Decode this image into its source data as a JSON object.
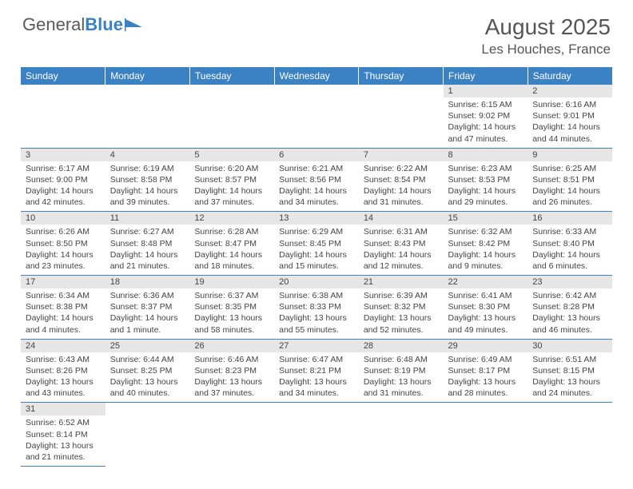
{
  "logo": {
    "text1": "General",
    "text2": "Blue"
  },
  "title": "August 2025",
  "location": "Les Houches, France",
  "colors": {
    "header_bg": "#3b82c4",
    "header_text": "#ffffff",
    "daynum_bg": "#e6e6e6",
    "rule": "#3b82c4",
    "body_text": "#444444"
  },
  "weekdays": [
    "Sunday",
    "Monday",
    "Tuesday",
    "Wednesday",
    "Thursday",
    "Friday",
    "Saturday"
  ],
  "weeks": [
    [
      null,
      null,
      null,
      null,
      null,
      {
        "n": "1",
        "sr": "Sunrise: 6:15 AM",
        "ss": "Sunset: 9:02 PM",
        "dl": "Daylight: 14 hours and 47 minutes."
      },
      {
        "n": "2",
        "sr": "Sunrise: 6:16 AM",
        "ss": "Sunset: 9:01 PM",
        "dl": "Daylight: 14 hours and 44 minutes."
      }
    ],
    [
      {
        "n": "3",
        "sr": "Sunrise: 6:17 AM",
        "ss": "Sunset: 9:00 PM",
        "dl": "Daylight: 14 hours and 42 minutes."
      },
      {
        "n": "4",
        "sr": "Sunrise: 6:19 AM",
        "ss": "Sunset: 8:58 PM",
        "dl": "Daylight: 14 hours and 39 minutes."
      },
      {
        "n": "5",
        "sr": "Sunrise: 6:20 AM",
        "ss": "Sunset: 8:57 PM",
        "dl": "Daylight: 14 hours and 37 minutes."
      },
      {
        "n": "6",
        "sr": "Sunrise: 6:21 AM",
        "ss": "Sunset: 8:56 PM",
        "dl": "Daylight: 14 hours and 34 minutes."
      },
      {
        "n": "7",
        "sr": "Sunrise: 6:22 AM",
        "ss": "Sunset: 8:54 PM",
        "dl": "Daylight: 14 hours and 31 minutes."
      },
      {
        "n": "8",
        "sr": "Sunrise: 6:23 AM",
        "ss": "Sunset: 8:53 PM",
        "dl": "Daylight: 14 hours and 29 minutes."
      },
      {
        "n": "9",
        "sr": "Sunrise: 6:25 AM",
        "ss": "Sunset: 8:51 PM",
        "dl": "Daylight: 14 hours and 26 minutes."
      }
    ],
    [
      {
        "n": "10",
        "sr": "Sunrise: 6:26 AM",
        "ss": "Sunset: 8:50 PM",
        "dl": "Daylight: 14 hours and 23 minutes."
      },
      {
        "n": "11",
        "sr": "Sunrise: 6:27 AM",
        "ss": "Sunset: 8:48 PM",
        "dl": "Daylight: 14 hours and 21 minutes."
      },
      {
        "n": "12",
        "sr": "Sunrise: 6:28 AM",
        "ss": "Sunset: 8:47 PM",
        "dl": "Daylight: 14 hours and 18 minutes."
      },
      {
        "n": "13",
        "sr": "Sunrise: 6:29 AM",
        "ss": "Sunset: 8:45 PM",
        "dl": "Daylight: 14 hours and 15 minutes."
      },
      {
        "n": "14",
        "sr": "Sunrise: 6:31 AM",
        "ss": "Sunset: 8:43 PM",
        "dl": "Daylight: 14 hours and 12 minutes."
      },
      {
        "n": "15",
        "sr": "Sunrise: 6:32 AM",
        "ss": "Sunset: 8:42 PM",
        "dl": "Daylight: 14 hours and 9 minutes."
      },
      {
        "n": "16",
        "sr": "Sunrise: 6:33 AM",
        "ss": "Sunset: 8:40 PM",
        "dl": "Daylight: 14 hours and 6 minutes."
      }
    ],
    [
      {
        "n": "17",
        "sr": "Sunrise: 6:34 AM",
        "ss": "Sunset: 8:38 PM",
        "dl": "Daylight: 14 hours and 4 minutes."
      },
      {
        "n": "18",
        "sr": "Sunrise: 6:36 AM",
        "ss": "Sunset: 8:37 PM",
        "dl": "Daylight: 14 hours and 1 minute."
      },
      {
        "n": "19",
        "sr": "Sunrise: 6:37 AM",
        "ss": "Sunset: 8:35 PM",
        "dl": "Daylight: 13 hours and 58 minutes."
      },
      {
        "n": "20",
        "sr": "Sunrise: 6:38 AM",
        "ss": "Sunset: 8:33 PM",
        "dl": "Daylight: 13 hours and 55 minutes."
      },
      {
        "n": "21",
        "sr": "Sunrise: 6:39 AM",
        "ss": "Sunset: 8:32 PM",
        "dl": "Daylight: 13 hours and 52 minutes."
      },
      {
        "n": "22",
        "sr": "Sunrise: 6:41 AM",
        "ss": "Sunset: 8:30 PM",
        "dl": "Daylight: 13 hours and 49 minutes."
      },
      {
        "n": "23",
        "sr": "Sunrise: 6:42 AM",
        "ss": "Sunset: 8:28 PM",
        "dl": "Daylight: 13 hours and 46 minutes."
      }
    ],
    [
      {
        "n": "24",
        "sr": "Sunrise: 6:43 AM",
        "ss": "Sunset: 8:26 PM",
        "dl": "Daylight: 13 hours and 43 minutes."
      },
      {
        "n": "25",
        "sr": "Sunrise: 6:44 AM",
        "ss": "Sunset: 8:25 PM",
        "dl": "Daylight: 13 hours and 40 minutes."
      },
      {
        "n": "26",
        "sr": "Sunrise: 6:46 AM",
        "ss": "Sunset: 8:23 PM",
        "dl": "Daylight: 13 hours and 37 minutes."
      },
      {
        "n": "27",
        "sr": "Sunrise: 6:47 AM",
        "ss": "Sunset: 8:21 PM",
        "dl": "Daylight: 13 hours and 34 minutes."
      },
      {
        "n": "28",
        "sr": "Sunrise: 6:48 AM",
        "ss": "Sunset: 8:19 PM",
        "dl": "Daylight: 13 hours and 31 minutes."
      },
      {
        "n": "29",
        "sr": "Sunrise: 6:49 AM",
        "ss": "Sunset: 8:17 PM",
        "dl": "Daylight: 13 hours and 28 minutes."
      },
      {
        "n": "30",
        "sr": "Sunrise: 6:51 AM",
        "ss": "Sunset: 8:15 PM",
        "dl": "Daylight: 13 hours and 24 minutes."
      }
    ],
    [
      {
        "n": "31",
        "sr": "Sunrise: 6:52 AM",
        "ss": "Sunset: 8:14 PM",
        "dl": "Daylight: 13 hours and 21 minutes."
      },
      null,
      null,
      null,
      null,
      null,
      null
    ]
  ]
}
